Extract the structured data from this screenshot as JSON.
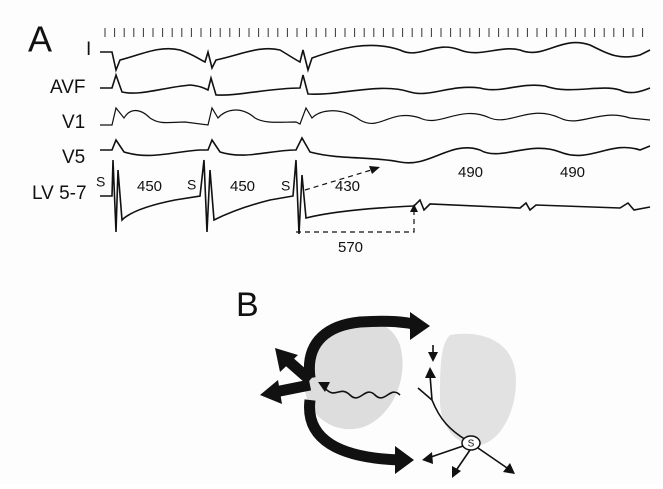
{
  "panel_a": {
    "label": "A",
    "leads": [
      "I",
      "AVF",
      "V1",
      "V5",
      "LV 5-7"
    ],
    "stimulus_labels": [
      "S",
      "S",
      "S"
    ],
    "intervals": [
      450,
      450,
      430,
      490,
      490
    ],
    "delay": 570
  },
  "panel_b": {
    "label": "B",
    "stimulus": "S"
  }
}
